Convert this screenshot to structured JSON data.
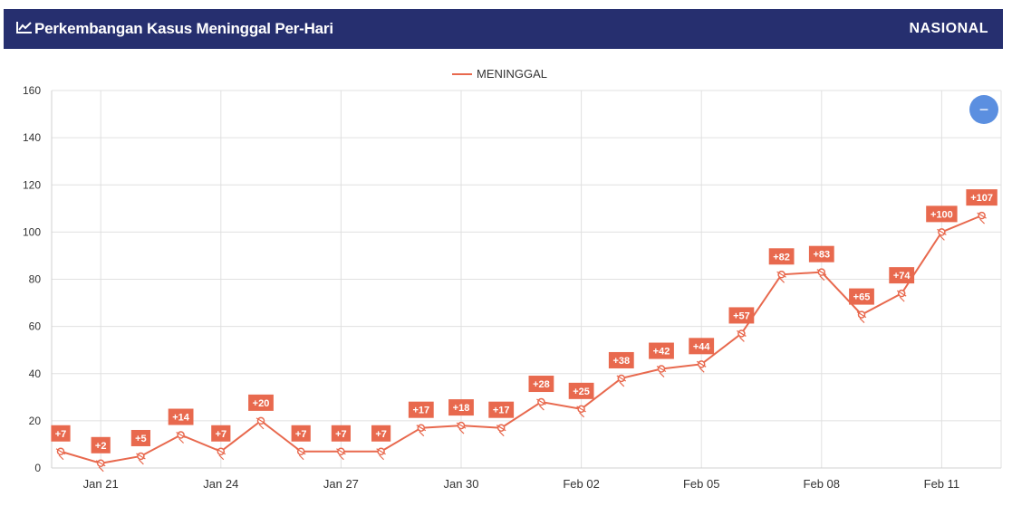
{
  "header": {
    "title": "Perkembangan Kasus Meninggal Per-Hari",
    "badge": "NASIONAL",
    "icon": "line-chart-icon",
    "background_color": "#262f6f"
  },
  "zoom_button": {
    "label": "−",
    "icon": "zoom-out-icon",
    "color": "#5b8fe0"
  },
  "chart_data": {
    "type": "line",
    "title": "",
    "xlabel": "",
    "ylabel": "",
    "ylim": [
      0,
      160
    ],
    "yticks": [
      0,
      20,
      40,
      60,
      80,
      100,
      120,
      140,
      160
    ],
    "grid": true,
    "legend_position": "top-center",
    "line_color": "#e8694e",
    "x": [
      "Jan 20",
      "Jan 21",
      "Jan 22",
      "Jan 23",
      "Jan 24",
      "Jan 25",
      "Jan 26",
      "Jan 27",
      "Jan 28",
      "Jan 29",
      "Jan 30",
      "Jan 31",
      "Feb 01",
      "Feb 02",
      "Feb 03",
      "Feb 04",
      "Feb 05",
      "Feb 06",
      "Feb 07",
      "Feb 08",
      "Feb 09",
      "Feb 10",
      "Feb 11",
      "Feb 12"
    ],
    "xtick_labels": [
      "Jan 21",
      "Jan 24",
      "Jan 27",
      "Jan 30",
      "Feb 02",
      "Feb 05",
      "Feb 08",
      "Feb 11"
    ],
    "series": [
      {
        "name": "MENINGGAL",
        "values": [
          7,
          2,
          5,
          14,
          7,
          20,
          7,
          7,
          7,
          17,
          18,
          17,
          28,
          25,
          38,
          42,
          44,
          57,
          82,
          83,
          65,
          74,
          100,
          107
        ],
        "labels": [
          "+7",
          "+2",
          "+5",
          "+14",
          "+7",
          "+20",
          "+7",
          "+7",
          "+7",
          "+17",
          "+18",
          "+17",
          "+28",
          "+25",
          "+38",
          "+42",
          "+44",
          "+57",
          "+82",
          "+83",
          "+65",
          "+74",
          "+100",
          "+107"
        ]
      }
    ]
  }
}
